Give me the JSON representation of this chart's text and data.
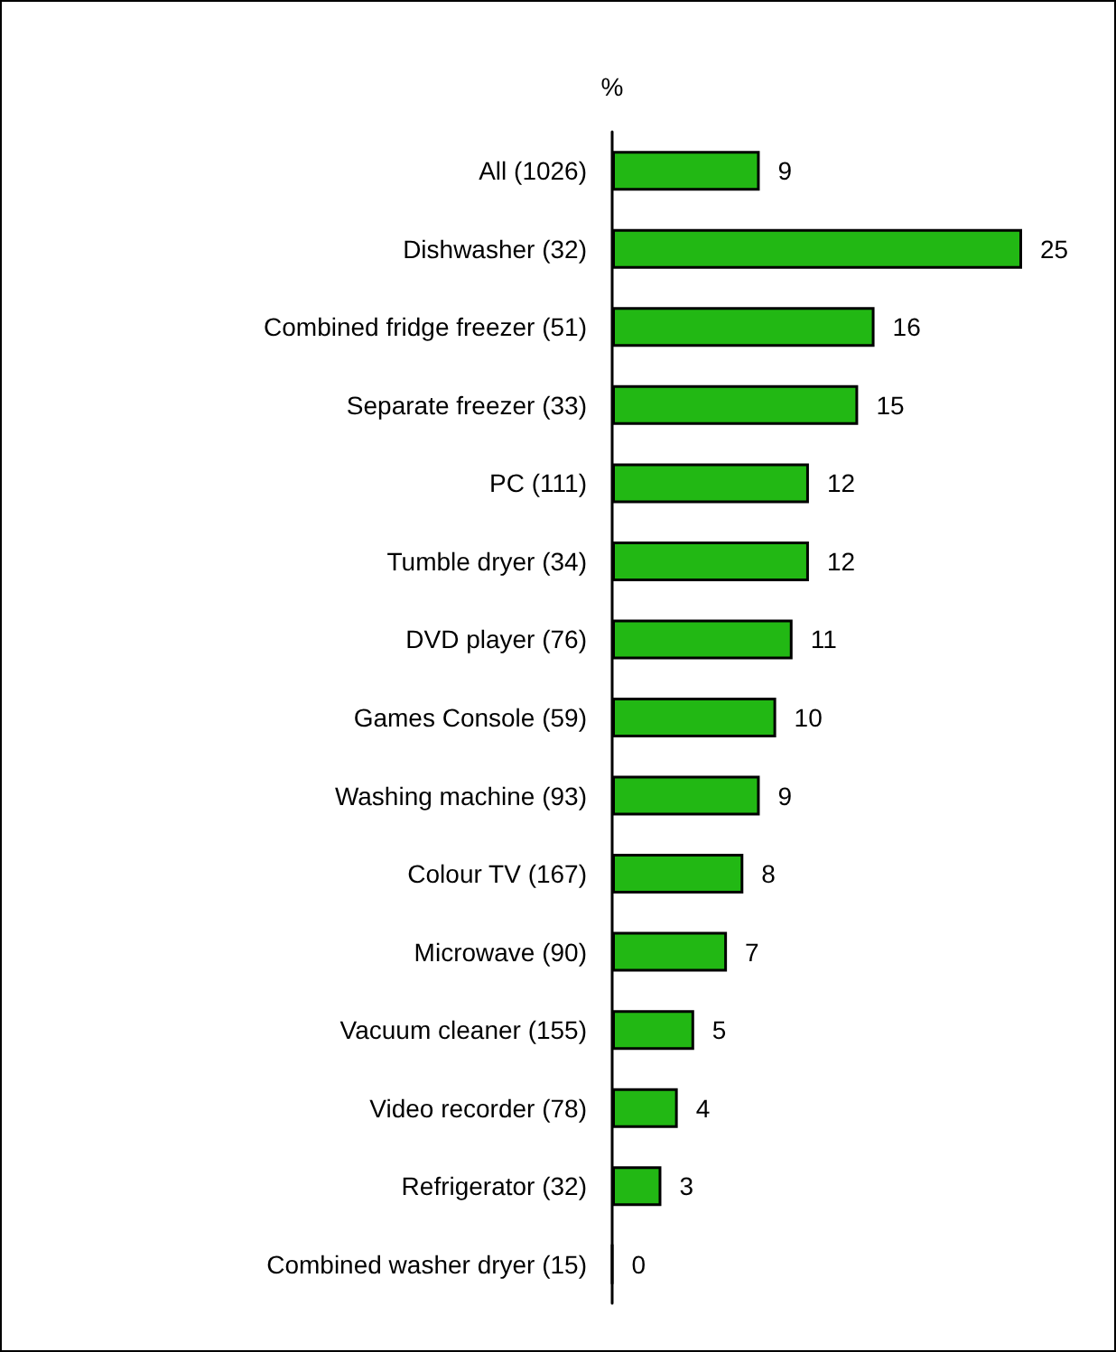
{
  "chart_data": {
    "type": "bar",
    "orientation": "horizontal",
    "xlabel": "%",
    "categories": [
      "All (1026)",
      "Dishwasher (32)",
      "Combined fridge freezer (51)",
      "Separate freezer (33)",
      "PC (111)",
      "Tumble dryer (34)",
      "DVD player (76)",
      "Games Console (59)",
      "Washing machine (93)",
      "Colour TV (167)",
      "Microwave (90)",
      "Vacuum cleaner (155)",
      "Video recorder (78)",
      "Refrigerator (32)",
      "Combined washer dryer (15)"
    ],
    "values": [
      9,
      25,
      16,
      15,
      12,
      12,
      11,
      10,
      9,
      8,
      7,
      5,
      4,
      3,
      0
    ],
    "color": "#22b814",
    "data_labels": true
  }
}
